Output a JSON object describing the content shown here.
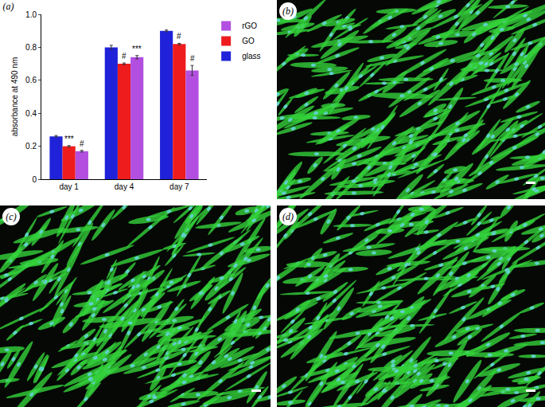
{
  "chart_data": {
    "type": "bar",
    "title": "(a)",
    "categories": [
      "day 1",
      "day 4",
      "day 7"
    ],
    "y_label": "absorbance at 490 nm",
    "series": [
      {
        "name": "glass",
        "color": "#1f22d8",
        "values": [
          0.26,
          0.8,
          0.9
        ],
        "errors": [
          0.005,
          0.012,
          0.005
        ]
      },
      {
        "name": "GO",
        "color": "#ee1c1c",
        "values": [
          0.2,
          0.7,
          0.82
        ],
        "errors": [
          0.004,
          0.005,
          0.004
        ],
        "marks": [
          "***",
          "#",
          "#"
        ]
      },
      {
        "name": "rGO",
        "color": "#b24fe0",
        "values": [
          0.17,
          0.74,
          0.66
        ],
        "errors": [
          0.005,
          0.01,
          0.03
        ],
        "marks": [
          "#",
          "***",
          "#"
        ]
      }
    ],
    "ylim": [
      0,
      1.0
    ],
    "yticks": [
      0,
      0.2,
      0.4,
      0.6,
      0.8,
      {
        "value": 1.0,
        "label": "1.0"
      }
    ],
    "grid": false,
    "legend": "top right"
  },
  "images": [
    {
      "label": "(b)"
    },
    {
      "label": "(c)"
    },
    {
      "label": "(d)"
    }
  ]
}
